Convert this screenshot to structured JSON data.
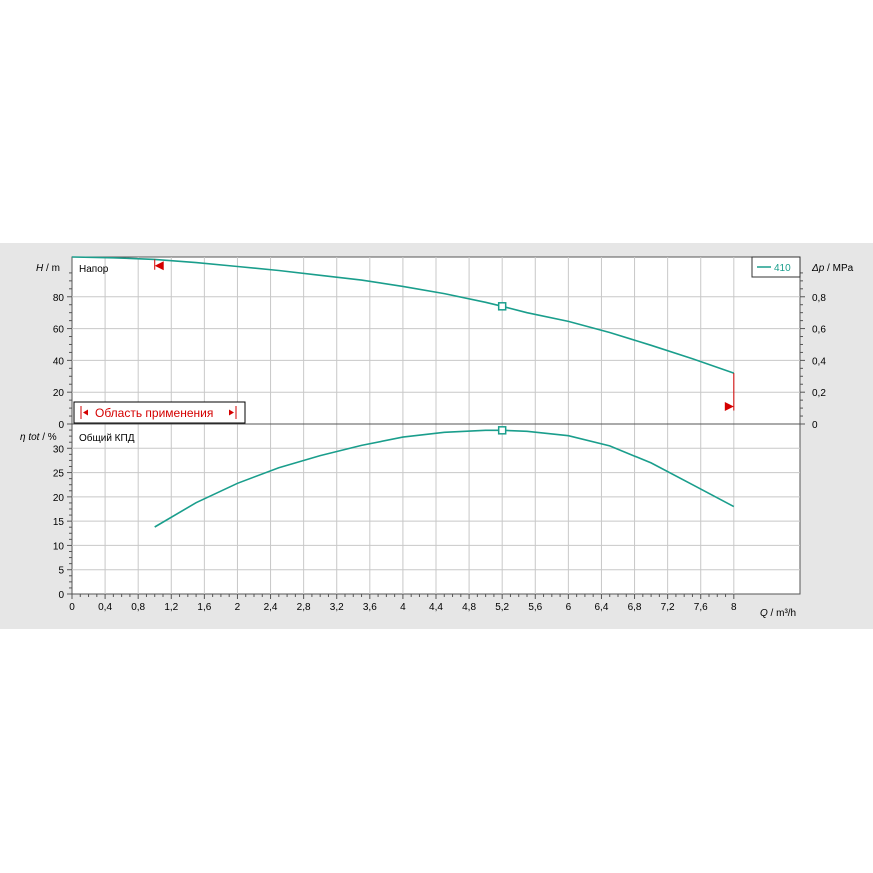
{
  "chart_data": {
    "type": "line",
    "series_color": "#1a9e8c",
    "marker_color": "#d40000",
    "x": {
      "label_var": "Q",
      "label_unit": " / m³/h",
      "ticks": [
        0,
        0.4,
        0.8,
        1.2,
        1.6,
        2,
        2.4,
        2.8,
        3.2,
        3.6,
        4,
        4.4,
        4.8,
        5.2,
        5.6,
        6,
        6.4,
        6.8,
        7.2,
        7.6,
        8
      ],
      "tick_labels": [
        "0",
        "0,4",
        "0,8",
        "1,2",
        "1,6",
        "2",
        "2,4",
        "2,8",
        "3,2",
        "3,6",
        "4",
        "4,4",
        "4,8",
        "5,2",
        "5,6",
        "6",
        "6,4",
        "6,8",
        "7,2",
        "7,6",
        "8"
      ],
      "range": [
        0,
        8.8
      ]
    },
    "upper": {
      "title": "Напор",
      "ylabel_var": "H",
      "ylabel_unit": " / m",
      "ylim": [
        0,
        105
      ],
      "yticks": [
        0,
        20,
        40,
        60,
        80
      ],
      "ytick_labels": [
        "0",
        "20",
        "40",
        "60",
        "80"
      ],
      "y2label_var": "Δp",
      "y2label_unit": " / MPa",
      "y2lim": [
        0,
        1.05
      ],
      "y2ticks": [
        0,
        0.2,
        0.4,
        0.6,
        0.8
      ],
      "y2tick_labels": [
        "0",
        "0,2",
        "0,4",
        "0,6",
        "0,8"
      ],
      "series": [
        {
          "name": "410",
          "x": [
            0,
            0.5,
            1.0,
            1.5,
            2.0,
            2.5,
            3.0,
            3.5,
            4.0,
            4.5,
            5.0,
            5.2,
            5.5,
            6.0,
            6.5,
            7.0,
            7.5,
            8.0
          ],
          "y": [
            105,
            104.5,
            103.5,
            101.5,
            99,
            96.5,
            93.5,
            90.5,
            86.5,
            82,
            76.5,
            74,
            70,
            64.5,
            57.5,
            49.5,
            41,
            32
          ]
        }
      ],
      "duty_point": {
        "x": 5.2,
        "y": 74
      },
      "range_label": "Область применения",
      "range_min_marker": {
        "x": 1.0,
        "y": 99.5
      },
      "range_max_marker": {
        "x": 8.0,
        "y": 11
      }
    },
    "lower": {
      "title": "Общий КПД",
      "ylabel_var": "η tot",
      "ylabel_unit": " / %",
      "ylim": [
        0,
        35
      ],
      "yticks": [
        0,
        5,
        10,
        15,
        20,
        25,
        30
      ],
      "ytick_labels": [
        "0",
        "5",
        "10",
        "15",
        "20",
        "25",
        "30"
      ],
      "series": [
        {
          "name": "410",
          "x": [
            1.0,
            1.5,
            2.0,
            2.5,
            3.0,
            3.5,
            4.0,
            4.5,
            5.0,
            5.2,
            5.5,
            6.0,
            6.5,
            7.0,
            7.5,
            8.0
          ],
          "y": [
            13.8,
            18.8,
            22.8,
            26,
            28.5,
            30.6,
            32.3,
            33.3,
            33.7,
            33.7,
            33.5,
            32.6,
            30.5,
            27,
            22.5,
            18
          ]
        }
      ],
      "duty_point": {
        "x": 5.2,
        "y": 33.7
      }
    }
  }
}
